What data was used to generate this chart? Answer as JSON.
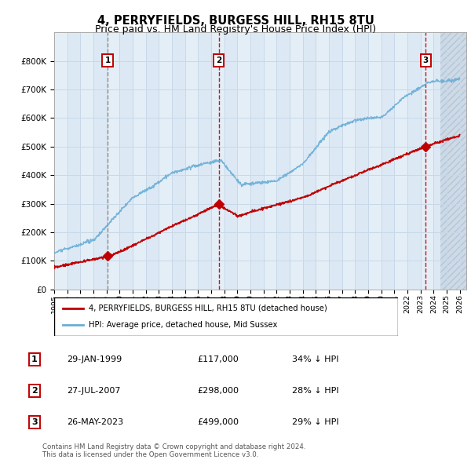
{
  "title": "4, PERRYFIELDS, BURGESS HILL, RH15 8TU",
  "subtitle": "Price paid vs. HM Land Registry's House Price Index (HPI)",
  "title_fontsize": 10.5,
  "subtitle_fontsize": 9,
  "ylim": [
    0,
    900000
  ],
  "yticks": [
    0,
    100000,
    200000,
    300000,
    400000,
    500000,
    600000,
    700000,
    800000
  ],
  "ytick_labels": [
    "£0",
    "£100K",
    "£200K",
    "£300K",
    "£400K",
    "£500K",
    "£600K",
    "£700K",
    "£800K"
  ],
  "hpi_color": "#6aaed6",
  "price_color": "#c00000",
  "grid_color": "#c8d8e8",
  "bg_color": "#dce9f5",
  "band_color": "#ccdcee",
  "hatch_bg": "#ccd8e4",
  "transactions": [
    {
      "label": "1",
      "date": "29-JAN-1999",
      "price": 117000,
      "x_year": 1999.08,
      "text": "34% ↓ HPI",
      "vline_color": "#888888",
      "vline_style": "--"
    },
    {
      "label": "2",
      "date": "27-JUL-2007",
      "price": 298000,
      "x_year": 2007.58,
      "text": "28% ↓ HPI",
      "vline_color": "#c00000",
      "vline_style": "--"
    },
    {
      "label": "3",
      "date": "26-MAY-2023",
      "price": 499000,
      "x_year": 2023.4,
      "text": "29% ↓ HPI",
      "vline_color": "#c00000",
      "vline_style": "--"
    }
  ],
  "legend_line1": "4, PERRYFIELDS, BURGESS HILL, RH15 8TU (detached house)",
  "legend_line2": "HPI: Average price, detached house, Mid Sussex",
  "footnote1": "Contains HM Land Registry data © Crown copyright and database right 2024.",
  "footnote2": "This data is licensed under the Open Government Licence v3.0.",
  "xmin": 1995.0,
  "xmax": 2026.5,
  "future_start": 2024.5
}
